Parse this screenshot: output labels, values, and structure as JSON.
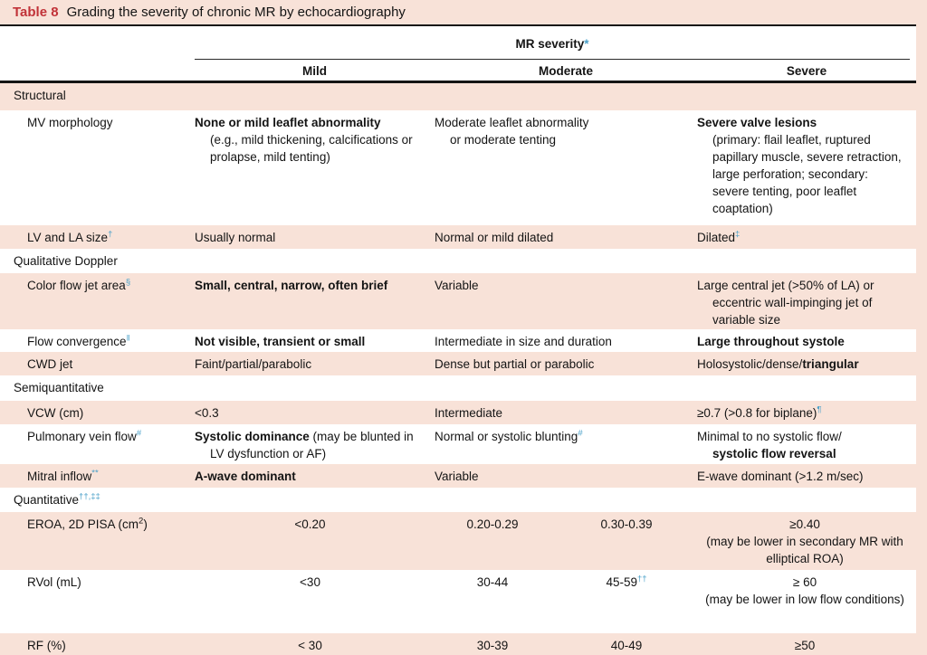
{
  "title": {
    "label": "Table 8",
    "text": "Grading the severity of chronic MR by echocardiography"
  },
  "header": {
    "group": "MR severity",
    "group_sup": "*",
    "columns": [
      "Mild",
      "Moderate",
      "Severe"
    ]
  },
  "colors": {
    "page_pink": "#f8e2d8",
    "title_red": "#c13238",
    "superscript_blue": "#4ba1c9",
    "rule_black": "#151515"
  },
  "rows": [
    {
      "kind": "section",
      "label": [
        {
          "t": "Structural"
        }
      ]
    },
    {
      "kind": "data",
      "label": [
        {
          "t": "MV morphology"
        }
      ],
      "mild": [
        {
          "t": "None or mild leaflet abnormality",
          "b": 1
        },
        {
          "t": "(e.g., mild thickening, calcifications or prolapse, mild tenting)",
          "br": 1
        }
      ],
      "moderate": [
        {
          "t": "Moderate leaflet abnormality"
        },
        {
          "t": "or moderate tenting",
          "br": 1
        }
      ],
      "severe": [
        {
          "t": "Severe valve lesions",
          "b": 1
        },
        {
          "t": "(primary: flail leaflet, ruptured papillary muscle, severe retraction, large perforation; secondary: severe tenting, poor leaflet coaptation)",
          "br": 1
        }
      ]
    },
    {
      "kind": "data",
      "label": [
        {
          "t": "LV and LA size"
        },
        {
          "t": "†",
          "sup": 1,
          "c": 1
        }
      ],
      "mild": [
        {
          "t": "Usually normal"
        }
      ],
      "moderate": [
        {
          "t": "Normal or mild dilated"
        }
      ],
      "severe": [
        {
          "t": "Dilated"
        },
        {
          "t": "‡",
          "sup": 1,
          "c": 1
        }
      ]
    },
    {
      "kind": "section",
      "label": [
        {
          "t": "Qualitative Doppler"
        }
      ]
    },
    {
      "kind": "data",
      "label": [
        {
          "t": "Color flow jet area"
        },
        {
          "t": "§",
          "sup": 1,
          "c": 1
        }
      ],
      "mild": [
        {
          "t": "Small, central, narrow, often brief",
          "b": 1
        }
      ],
      "moderate": [
        {
          "t": "Variable"
        }
      ],
      "severe": [
        {
          "t": "Large central jet (>50% of LA) or eccentric wall-impinging jet of variable size"
        }
      ]
    },
    {
      "kind": "data",
      "label": [
        {
          "t": "Flow convergence"
        },
        {
          "t": "‖",
          "sup": 1,
          "c": 1
        }
      ],
      "mild": [
        {
          "t": "Not visible, transient or small",
          "b": 1
        }
      ],
      "moderate": [
        {
          "t": "Intermediate in size and duration"
        }
      ],
      "severe": [
        {
          "t": "Large throughout systole",
          "b": 1
        }
      ]
    },
    {
      "kind": "data",
      "label": [
        {
          "t": "CWD jet"
        }
      ],
      "mild": [
        {
          "t": "Faint/partial/parabolic"
        }
      ],
      "moderate": [
        {
          "t": "Dense but partial or parabolic"
        }
      ],
      "severe": [
        {
          "t": "Holosystolic/dense/"
        },
        {
          "t": "triangular",
          "b": 1
        }
      ]
    },
    {
      "kind": "section",
      "label": [
        {
          "t": "Semiquantitative"
        }
      ]
    },
    {
      "kind": "data",
      "label": [
        {
          "t": "VCW (cm)"
        }
      ],
      "mild": [
        {
          "t": "<0.3"
        }
      ],
      "moderate": [
        {
          "t": "Intermediate"
        }
      ],
      "severe": [
        {
          "t": "≥0.7 (>0.8 for biplane)"
        },
        {
          "t": "¶",
          "sup": 1,
          "c": 1
        }
      ]
    },
    {
      "kind": "data",
      "label": [
        {
          "t": "Pulmonary vein flow"
        },
        {
          "t": "#",
          "sup": 1,
          "c": 1
        }
      ],
      "mild": [
        {
          "t": "Systolic dominance",
          "b": 1
        },
        {
          "t": " (may be blunted in LV dysfunction or AF)"
        }
      ],
      "moderate": [
        {
          "t": "Normal or systolic blunting"
        },
        {
          "t": "#",
          "sup": 1,
          "c": 1
        }
      ],
      "severe": [
        {
          "t": "Minimal to no systolic flow/"
        },
        {
          "t": "systolic flow reversal",
          "b": 1,
          "br": 1
        }
      ]
    },
    {
      "kind": "data",
      "label": [
        {
          "t": "Mitral inflow"
        },
        {
          "t": "**",
          "sup": 1,
          "c": 1
        }
      ],
      "mild": [
        {
          "t": "A-wave dominant",
          "b": 1
        }
      ],
      "moderate": [
        {
          "t": "Variable"
        }
      ],
      "severe": [
        {
          "t": "E-wave dominant (>1.2 m/sec)"
        }
      ]
    },
    {
      "kind": "section",
      "label": [
        {
          "t": "Quantitative"
        },
        {
          "t": "††,‡‡",
          "sup": 1,
          "c": 1
        }
      ]
    },
    {
      "kind": "quant",
      "label": [
        {
          "t": "EROA, 2D PISA (cm"
        },
        {
          "t": "2",
          "sup": 1
        },
        {
          "t": ")"
        }
      ],
      "v1": [
        {
          "t": "<0.20"
        }
      ],
      "v2": [
        {
          "t": "0.20-0.29"
        }
      ],
      "v3": [
        {
          "t": "0.30-0.39"
        }
      ],
      "v4": [
        {
          "t": "≥0.40"
        },
        {
          "t": "(may be lower in secondary MR with elliptical ROA)",
          "br": 1
        }
      ]
    },
    {
      "kind": "quant",
      "label": [
        {
          "t": "RVol (mL)"
        }
      ],
      "v1": [
        {
          "t": "<30"
        }
      ],
      "v2": [
        {
          "t": "30-44"
        }
      ],
      "v3": [
        {
          "t": "45-59"
        },
        {
          "t": "††",
          "sup": 1,
          "c": 1
        }
      ],
      "v4": [
        {
          "t": "≥ 60"
        },
        {
          "t": "(may be lower in low flow conditions)",
          "br": 1
        }
      ]
    },
    {
      "kind": "quant",
      "label": [
        {
          "t": "RF (%)"
        }
      ],
      "v1": [
        {
          "t": "< 30"
        }
      ],
      "v2": [
        {
          "t": "30-39"
        }
      ],
      "v3": [
        {
          "t": "40-49"
        }
      ],
      "v4": [
        {
          "t": "≥50"
        }
      ]
    }
  ]
}
